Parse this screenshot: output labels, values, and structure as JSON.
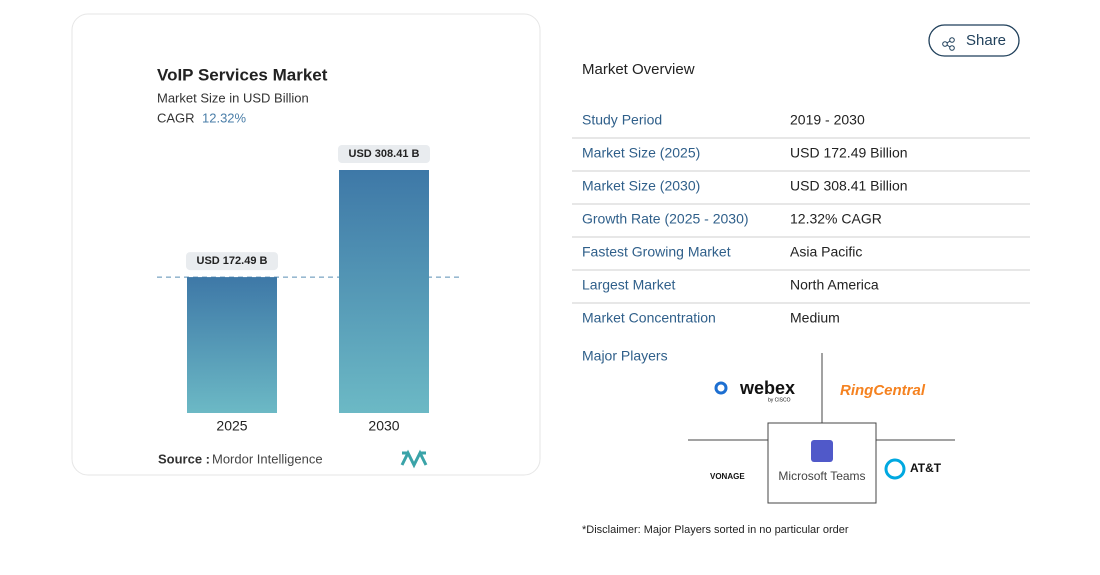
{
  "share": "Share",
  "chart_data": {
    "type": "bar",
    "title": "VoIP Services Market",
    "subtitle": "Market Size in USD Billion",
    "cagr_label": "CAGR",
    "cagr": "12.32%",
    "categories": [
      "2025",
      "2030"
    ],
    "values": [
      172.49,
      308.41
    ],
    "value_labels": [
      "USD 172.49 B",
      "USD 308.41 B"
    ],
    "gradient": [
      "#3e78a7",
      "#6cb9c5"
    ],
    "source_label": "Source :",
    "source": "Mordor Intelligence"
  },
  "overview": {
    "title": "Market Overview",
    "rows": [
      [
        "Study Period",
        "2019 - 2030"
      ],
      [
        "Market Size (2025)",
        "USD 172.49 Billion"
      ],
      [
        "Market Size (2030)",
        "USD 308.41 Billion"
      ],
      [
        "Growth Rate (2025 - 2030)",
        "12.32% CAGR"
      ],
      [
        "Fastest Growing Market",
        "Asia Pacific"
      ],
      [
        "Largest Market",
        "North America"
      ],
      [
        "Market Concentration",
        "Medium"
      ]
    ]
  },
  "major_players": {
    "title": "Major Players",
    "webex": "webex",
    "webex_sub": "by CISCO",
    "ringcentral": "RingCentral",
    "teams": "Microsoft Teams",
    "att": "AT&T",
    "vonage": "VONAGE",
    "disclaimer": "*Disclaimer: Major Players sorted in no particular order"
  }
}
